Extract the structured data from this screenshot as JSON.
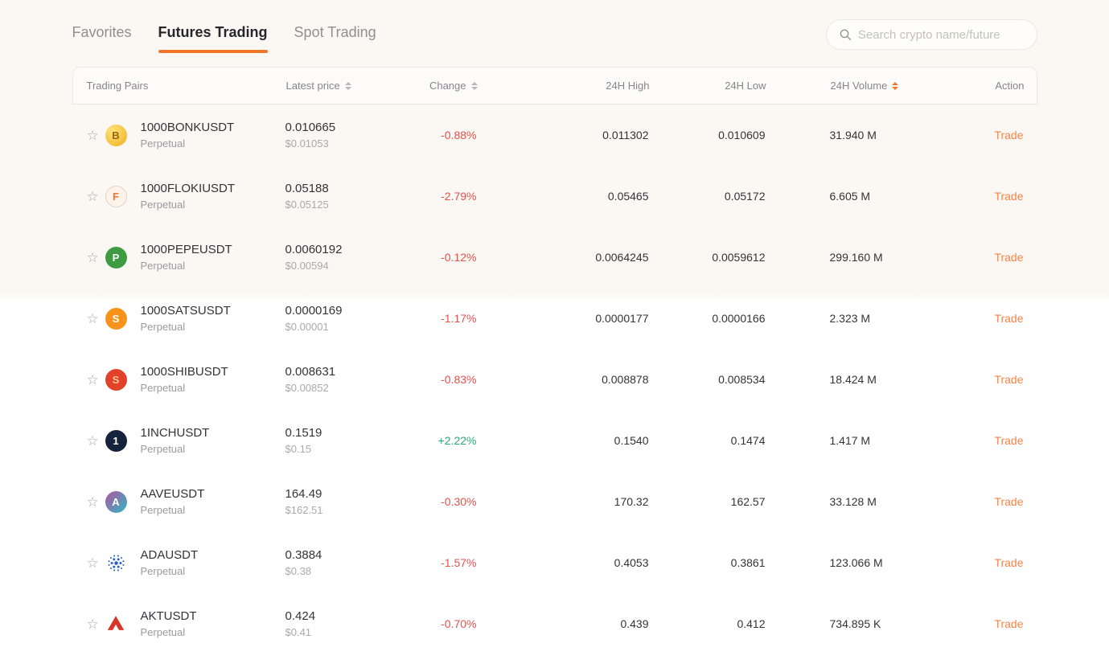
{
  "colors": {
    "accent": "#f1762c",
    "negative": "#e0534f",
    "positive": "#2bab72"
  },
  "tabs": [
    {
      "label": "Favorites",
      "active": false
    },
    {
      "label": "Futures Trading",
      "active": true
    },
    {
      "label": "Spot Trading",
      "active": false
    }
  ],
  "search": {
    "placeholder": "Search crypto name/future"
  },
  "table": {
    "columns": [
      {
        "label": "Trading Pairs",
        "sortable": false,
        "sort_active": false,
        "key": "pair"
      },
      {
        "label": "Latest price",
        "sortable": true,
        "sort_active": false,
        "key": "price"
      },
      {
        "label": "Change",
        "sortable": true,
        "sort_active": false,
        "key": "change"
      },
      {
        "label": "24H High",
        "sortable": false,
        "sort_active": false,
        "key": "high"
      },
      {
        "label": "24H Low",
        "sortable": false,
        "sort_active": false,
        "key": "low"
      },
      {
        "label": "24H Volume",
        "sortable": true,
        "sort_active": true,
        "key": "volume"
      },
      {
        "label": "Action",
        "sortable": false,
        "sort_active": false,
        "key": "action"
      }
    ],
    "rows": [
      {
        "pair": "1000BONKUSDT",
        "type": "Perpetual",
        "icon": {
          "name": "bonk-coin-icon",
          "kind": "badge",
          "glyph": "B",
          "bg": "radial-gradient(circle at 35% 30%, #ffe37a, #f2ae1f)",
          "fg": "#9a6510",
          "border": ""
        },
        "price": "0.010665",
        "price_usd": "$0.01053",
        "change": "-0.88%",
        "direction": "down",
        "high": "0.011302",
        "low": "0.010609",
        "volume": "31.940 M",
        "action": "Trade"
      },
      {
        "pair": "1000FLOKIUSDT",
        "type": "Perpetual",
        "icon": {
          "name": "floki-coin-icon",
          "kind": "badge",
          "glyph": "F",
          "bg": "#fdf3ea",
          "fg": "#e8793a",
          "border": "#e3d2c0"
        },
        "price": "0.05188",
        "price_usd": "$0.05125",
        "change": "-2.79%",
        "direction": "down",
        "high": "0.05465",
        "low": "0.05172",
        "volume": "6.605 M",
        "action": "Trade"
      },
      {
        "pair": "1000PEPEUSDT",
        "type": "Perpetual",
        "icon": {
          "name": "pepe-coin-icon",
          "kind": "badge",
          "glyph": "P",
          "bg": "#3f9b42",
          "fg": "#ffffff",
          "border": ""
        },
        "price": "0.0060192",
        "price_usd": "$0.00594",
        "change": "-0.12%",
        "direction": "down",
        "high": "0.0064245",
        "low": "0.0059612",
        "volume": "299.160 M",
        "action": "Trade"
      },
      {
        "pair": "1000SATSUSDT",
        "type": "Perpetual",
        "icon": {
          "name": "sats-coin-icon",
          "kind": "badge",
          "glyph": "S",
          "bg": "#f7931a",
          "fg": "#ffffff",
          "border": ""
        },
        "price": "0.0000169",
        "price_usd": "$0.00001",
        "change": "-1.17%",
        "direction": "down",
        "high": "0.0000177",
        "low": "0.0000166",
        "volume": "2.323 M",
        "action": "Trade"
      },
      {
        "pair": "1000SHIBUSDT",
        "type": "Perpetual",
        "icon": {
          "name": "shib-coin-icon",
          "kind": "badge",
          "glyph": "S",
          "bg": "#e2422b",
          "fg": "#f8c98f",
          "border": ""
        },
        "price": "0.008631",
        "price_usd": "$0.00852",
        "change": "-0.83%",
        "direction": "down",
        "high": "0.008878",
        "low": "0.008534",
        "volume": "18.424 M",
        "action": "Trade"
      },
      {
        "pair": "1INCHUSDT",
        "type": "Perpetual",
        "icon": {
          "name": "1inch-coin-icon",
          "kind": "badge",
          "glyph": "1",
          "bg": "#16233d",
          "fg": "#ffffff",
          "border": ""
        },
        "price": "0.1519",
        "price_usd": "$0.15",
        "change": "+2.22%",
        "direction": "up",
        "high": "0.1540",
        "low": "0.1474",
        "volume": "1.417 M",
        "action": "Trade"
      },
      {
        "pair": "AAVEUSDT",
        "type": "Perpetual",
        "icon": {
          "name": "aave-coin-icon",
          "kind": "badge",
          "glyph": "A",
          "bg": "linear-gradient(135deg, #b6509e, #2ebac6)",
          "fg": "#ffffff",
          "border": ""
        },
        "price": "164.49",
        "price_usd": "$162.51",
        "change": "-0.30%",
        "direction": "down",
        "high": "170.32",
        "low": "162.57",
        "volume": "33.128 M",
        "action": "Trade"
      },
      {
        "pair": "ADAUSDT",
        "type": "Perpetual",
        "icon": {
          "name": "ada-coin-icon",
          "kind": "svg",
          "svg": "ada",
          "color": "#2a5ccc"
        },
        "price": "0.3884",
        "price_usd": "$0.38",
        "change": "-1.57%",
        "direction": "down",
        "high": "0.4053",
        "low": "0.3861",
        "volume": "123.066 M",
        "action": "Trade"
      },
      {
        "pair": "AKTUSDT",
        "type": "Perpetual",
        "icon": {
          "name": "akt-coin-icon",
          "kind": "svg",
          "svg": "akt",
          "color": "#da3327"
        },
        "price": "0.424",
        "price_usd": "$0.41",
        "change": "-0.70%",
        "direction": "down",
        "high": "0.439",
        "low": "0.412",
        "volume": "734.895 K",
        "action": "Trade"
      }
    ]
  }
}
